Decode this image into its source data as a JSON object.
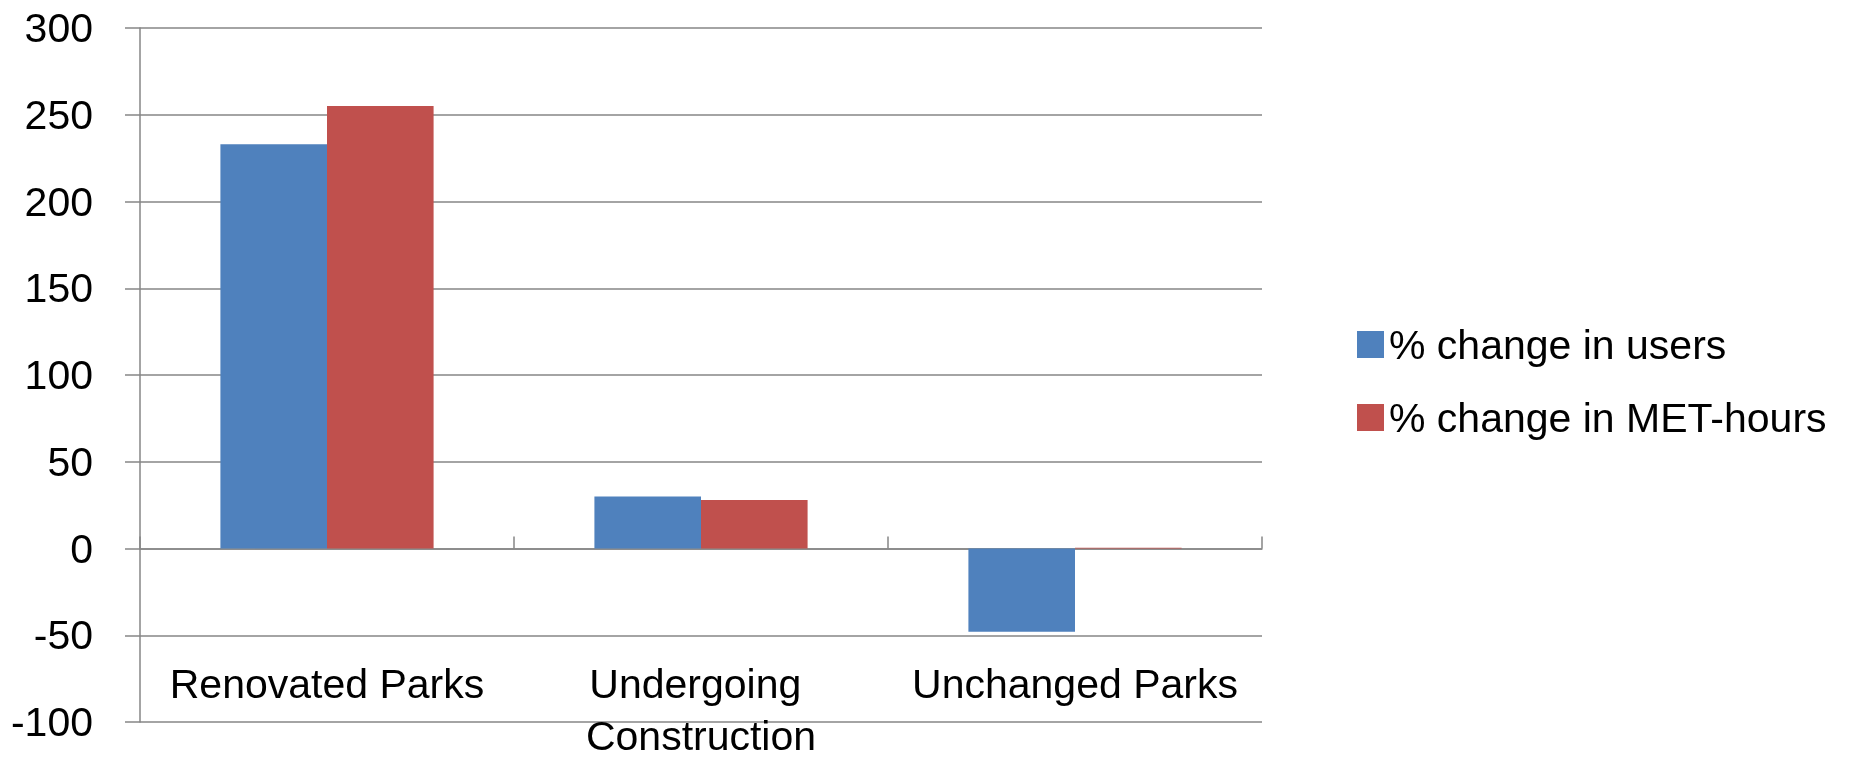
{
  "chart_data": {
    "type": "bar",
    "categories": [
      "Renovated Parks",
      "Undergoing Construction",
      "Unchanged Parks"
    ],
    "series": [
      {
        "name": "% change in users",
        "color": "#4f81bd",
        "values": [
          233,
          30,
          -48
        ]
      },
      {
        "name": "% change in MET-hours",
        "color": "#c0504d",
        "values": [
          255,
          28,
          0.5
        ]
      }
    ],
    "ylim": [
      -100,
      300
    ],
    "yticks": [
      -100,
      -50,
      0,
      50,
      100,
      150,
      200,
      250,
      300
    ],
    "grid": "y",
    "legend": "right"
  }
}
